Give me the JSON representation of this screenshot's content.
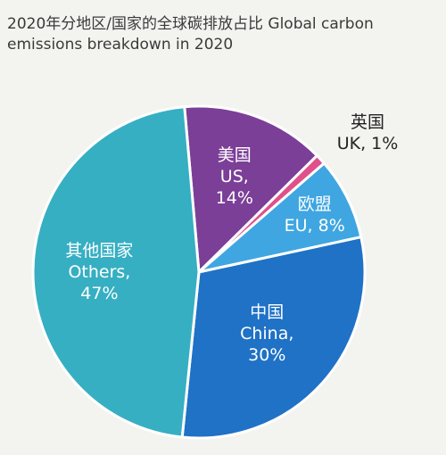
{
  "chart_data": {
    "type": "pie",
    "title_line1": "2020年分地区/国家的全球碳排放占比 Global carbon",
    "title_line2": "emissions breakdown in 2020",
    "slices": [
      {
        "label_cn": "美国",
        "label_en": "US,",
        "value": 14,
        "value_text": "14%",
        "color": "#7b3f98"
      },
      {
        "label_cn": "英国",
        "label_en": "UK, 1%",
        "value": 1,
        "value_text": "",
        "color": "#e0508a"
      },
      {
        "label_cn": "欧盟",
        "label_en": "EU, 8%",
        "value": 8,
        "value_text": "",
        "color": "#3fa6e1"
      },
      {
        "label_cn": "中国",
        "label_en": "China,",
        "value": 30,
        "value_text": "30%",
        "color": "#1f72c6"
      },
      {
        "label_cn": "其他国家",
        "label_en": "Others,",
        "value": 47,
        "value_text": "47%",
        "color": "#36afc2"
      }
    ],
    "legend": "none"
  }
}
